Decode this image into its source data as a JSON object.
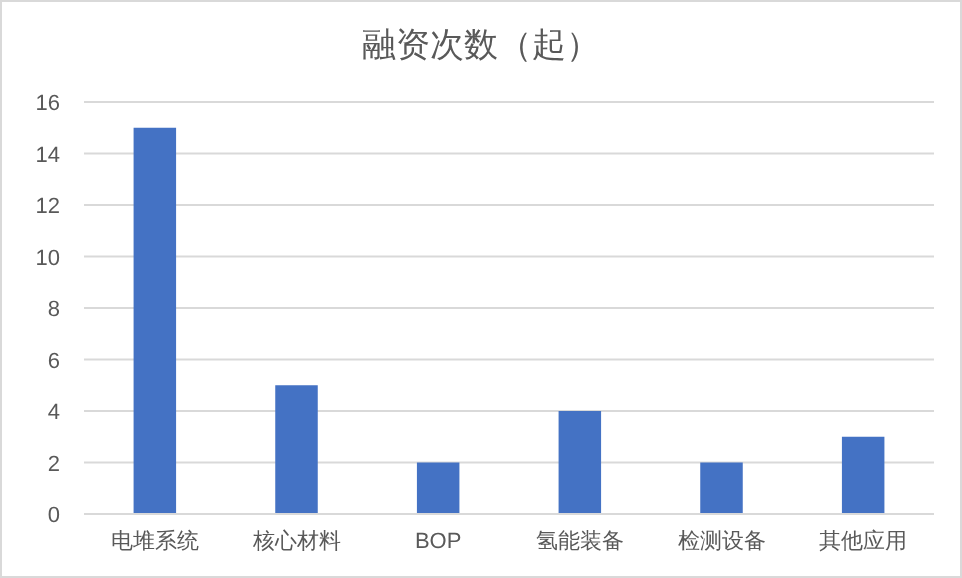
{
  "chart_data": {
    "type": "bar",
    "title": "融资次数（起）",
    "categories": [
      "电堆系统",
      "核心材料",
      "BOP",
      "氢能装备",
      "检测设备",
      "其他应用"
    ],
    "values": [
      15,
      5,
      2,
      4,
      2,
      3
    ],
    "color": "#4472c4",
    "ylim": [
      0,
      16
    ],
    "yticks": [
      0,
      2,
      4,
      6,
      8,
      10,
      12,
      14,
      16
    ],
    "grid": "y"
  }
}
